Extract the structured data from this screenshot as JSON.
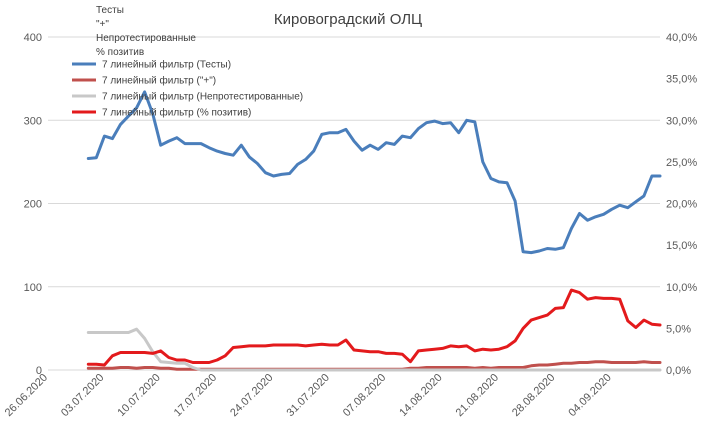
{
  "chart_data": {
    "type": "line",
    "title": "Кировоградский ОЛЦ",
    "legend_placement": "top-left",
    "grid": "horizontal",
    "legend_header": [
      "Тесты",
      "\"+\"",
      "Непротестированные",
      "% позитив"
    ],
    "y_left": {
      "range": [
        0,
        400
      ],
      "ticks": [
        "0",
        "100",
        "200",
        "300",
        "400"
      ]
    },
    "y_right": {
      "range": [
        0,
        40
      ],
      "ticks": [
        "0,0%",
        "5,0%",
        "10,0%",
        "15,0%",
        "20,0%",
        "25,0%",
        "30,0%",
        "35,0%",
        "40,0%"
      ]
    },
    "x_ticks": [
      "26.06.2020",
      "03.07.2020",
      "10.07.2020",
      "17.07.2020",
      "24.07.2020",
      "31.07.2020",
      "07.08.2020",
      "14.08.2020",
      "21.08.2020",
      "28.08.2020",
      "04.09.2020"
    ],
    "x": [
      "01.07.2020",
      "02.07.2020",
      "03.07.2020",
      "04.07.2020",
      "05.07.2020",
      "06.07.2020",
      "07.07.2020",
      "08.07.2020",
      "09.07.2020",
      "10.07.2020",
      "11.07.2020",
      "12.07.2020",
      "13.07.2020",
      "14.07.2020",
      "15.07.2020",
      "16.07.2020",
      "17.07.2020",
      "18.07.2020",
      "19.07.2020",
      "20.07.2020",
      "21.07.2020",
      "22.07.2020",
      "23.07.2020",
      "24.07.2020",
      "25.07.2020",
      "26.07.2020",
      "27.07.2020",
      "28.07.2020",
      "29.07.2020",
      "30.07.2020",
      "31.07.2020",
      "01.08.2020",
      "02.08.2020",
      "03.08.2020",
      "04.08.2020",
      "05.08.2020",
      "06.08.2020",
      "07.08.2020",
      "08.08.2020",
      "09.08.2020",
      "10.08.2020",
      "11.08.2020",
      "12.08.2020",
      "13.08.2020",
      "14.08.2020",
      "15.08.2020",
      "16.08.2020",
      "17.08.2020",
      "18.08.2020",
      "19.08.2020",
      "20.08.2020",
      "21.08.2020",
      "22.08.2020",
      "23.08.2020",
      "24.08.2020",
      "25.08.2020",
      "26.08.2020",
      "27.08.2020",
      "28.08.2020",
      "29.08.2020",
      "30.08.2020",
      "31.08.2020",
      "01.09.2020",
      "02.09.2020",
      "03.09.2020",
      "04.09.2020",
      "05.09.2020",
      "06.09.2020",
      "07.09.2020",
      "08.09.2020",
      "09.09.2020",
      "10.09.2020"
    ],
    "series": [
      {
        "name": "7 линейный фильтр (Тесты)",
        "axis": "left",
        "color": "#4a7ebb",
        "values": [
          254,
          255,
          281,
          278,
          295,
          305,
          315,
          334,
          308,
          270,
          275,
          279,
          272,
          272,
          272,
          267,
          263,
          260,
          258,
          270,
          256,
          248,
          237,
          233,
          235,
          236,
          247,
          253,
          263,
          283,
          285,
          285,
          289,
          275,
          264,
          270,
          265,
          273,
          271,
          281,
          279,
          290,
          297,
          299,
          296,
          297,
          285,
          300,
          298,
          250,
          230,
          226,
          225,
          203,
          142,
          141,
          143,
          146,
          145,
          147,
          170,
          188,
          180,
          184,
          187,
          193,
          198,
          195,
          202,
          209,
          233,
          233
        ]
      },
      {
        "name": "7 линейный фильтр (\"+\")",
        "axis": "left",
        "color": "#c0504d",
        "values": [
          2,
          2,
          2,
          2,
          3,
          3,
          2,
          3,
          3,
          2,
          2,
          1,
          1,
          1,
          1,
          1,
          1,
          1,
          1,
          1,
          1,
          1,
          1,
          1,
          1,
          1,
          1,
          1,
          1,
          1,
          1,
          1,
          1,
          1,
          1,
          1,
          1,
          1,
          1,
          1,
          2,
          2,
          3,
          3,
          3,
          3,
          3,
          3,
          2,
          3,
          2,
          3,
          3,
          3,
          3,
          5,
          6,
          6,
          7,
          8,
          8,
          9,
          9,
          10,
          10,
          9,
          9,
          9,
          9,
          10,
          9,
          9
        ]
      },
      {
        "name": "7 линейный фильтр (Непротестированные)",
        "axis": "left",
        "color": "#c8c8c8",
        "values": [
          45,
          45,
          45,
          45,
          45,
          45,
          49,
          38,
          22,
          10,
          9,
          8,
          8,
          3,
          0,
          0,
          0,
          0,
          0,
          0,
          0,
          0,
          0,
          0,
          0,
          0,
          0,
          0,
          0,
          0,
          0,
          0,
          0,
          0,
          0,
          0,
          0,
          0,
          0,
          0,
          0,
          0,
          0,
          0,
          0,
          0,
          0,
          0,
          0,
          0,
          0,
          0,
          0,
          0,
          0,
          0,
          0,
          0,
          0,
          0,
          0,
          0,
          0,
          0,
          0,
          0,
          0,
          0,
          0,
          0,
          0,
          0
        ]
      },
      {
        "name": "7 линейный фильтр (% позитив)",
        "axis": "right",
        "color": "#e31a1c",
        "values": [
          0.7,
          0.7,
          0.6,
          1.7,
          2.1,
          2.1,
          2.1,
          2.1,
          2.0,
          2.3,
          1.5,
          1.2,
          1.2,
          0.9,
          0.9,
          0.9,
          1.2,
          1.7,
          2.7,
          2.8,
          2.9,
          2.9,
          2.9,
          3.0,
          3.0,
          3.0,
          3.0,
          2.9,
          3.0,
          3.1,
          3.0,
          3.0,
          3.6,
          2.4,
          2.3,
          2.2,
          2.2,
          2.0,
          2.0,
          1.9,
          1.0,
          2.3,
          2.4,
          2.5,
          2.6,
          2.9,
          2.8,
          2.9,
          2.3,
          2.5,
          2.4,
          2.5,
          2.8,
          3.5,
          5.0,
          6.0,
          6.3,
          6.6,
          7.4,
          7.5,
          9.6,
          9.3,
          8.5,
          8.7,
          8.6,
          8.6,
          8.5,
          5.9,
          5.1,
          6.0,
          5.5,
          5.4
        ]
      }
    ]
  }
}
